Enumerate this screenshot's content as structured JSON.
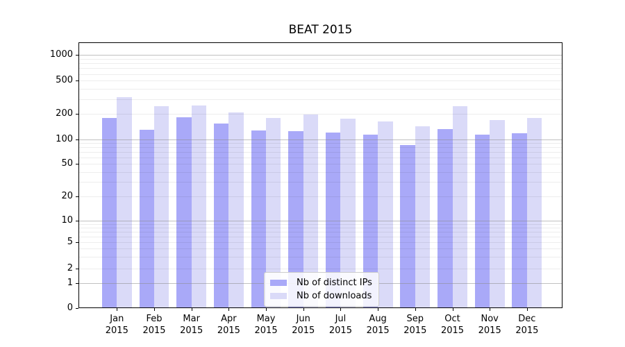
{
  "title": "BEAT 2015",
  "chart_data": {
    "type": "bar",
    "title": "BEAT 2015",
    "categories": [
      "Jan\n2015",
      "Feb\n2015",
      "Mar\n2015",
      "Apr\n2015",
      "May\n2015",
      "Jun\n2015",
      "Jul\n2015",
      "Aug\n2015",
      "Sep\n2015",
      "Oct\n2015",
      "Nov\n2015",
      "Dec\n2015"
    ],
    "series": [
      {
        "name": "Nb of distinct IPs",
        "color": "#a9a9f8",
        "values": [
          178,
          131,
          183,
          154,
          128,
          124,
          121,
          114,
          85,
          133,
          114,
          118
        ]
      },
      {
        "name": "Nb of downloads",
        "color": "#dadaf8",
        "values": [
          318,
          248,
          253,
          209,
          178,
          196,
          176,
          162,
          143,
          248,
          168,
          181
        ]
      }
    ],
    "yscale": "symlog",
    "yticks": [
      0,
      1,
      2,
      5,
      10,
      20,
      50,
      100,
      200,
      500,
      1000
    ],
    "ylim": [
      0,
      1450
    ],
    "xlabel": "",
    "ylabel": "",
    "grid": "horizontal, major and minor log gridlines",
    "legend_position": "lower center",
    "colors": {
      "axis": "#000000",
      "major_grid": "#8c8c8c",
      "minor_grid": "#e8e8e8",
      "background": "#ffffff"
    }
  }
}
